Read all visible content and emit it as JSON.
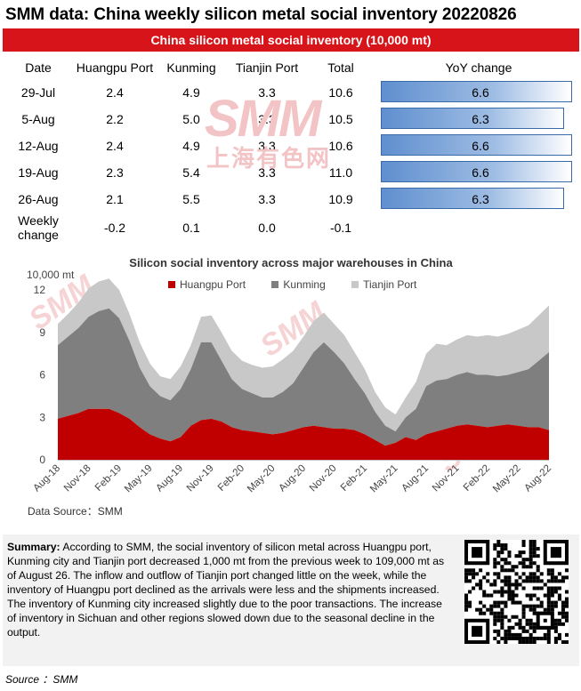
{
  "title": "SMM data: China weekly silicon metal social inventory 20220826",
  "table": {
    "header": "China silicon metal social inventory (10,000 mt)",
    "columns": [
      "Date",
      "Huangpu Port",
      "Kunming",
      "Tianjin Port",
      "Total",
      "YoY change"
    ],
    "rows": [
      {
        "date": "29-Jul",
        "huangpu": "2.4",
        "kunming": "4.9",
        "tianjin": "3.3",
        "total": "10.6",
        "yoy": "6.6",
        "yoy_value": 6.6
      },
      {
        "date": "5-Aug",
        "huangpu": "2.2",
        "kunming": "5.0",
        "tianjin": "3.3",
        "total": "10.5",
        "yoy": "6.3",
        "yoy_value": 6.3
      },
      {
        "date": "12-Aug",
        "huangpu": "2.4",
        "kunming": "4.9",
        "tianjin": "3.3",
        "total": "10.6",
        "yoy": "6.6",
        "yoy_value": 6.6
      },
      {
        "date": "19-Aug",
        "huangpu": "2.3",
        "kunming": "5.4",
        "tianjin": "3.3",
        "total": "11.0",
        "yoy": "6.6",
        "yoy_value": 6.6
      },
      {
        "date": "26-Aug",
        "huangpu": "2.1",
        "kunming": "5.5",
        "tianjin": "3.3",
        "total": "10.9",
        "yoy": "6.3",
        "yoy_value": 6.3
      }
    ],
    "weekly_change": {
      "label_line1": "Weekly",
      "label_line2": "change",
      "huangpu": "-0.2",
      "kunming": "0.1",
      "tianjin": "0.0",
      "total": "-0.1"
    }
  },
  "watermark": {
    "brand": "SMM",
    "chinese": "上海有色网"
  },
  "chart_data": {
    "type": "area",
    "stacked": true,
    "title": "Silicon social inventory across major warehouses in China",
    "unit_label": "10,000 mt",
    "ylim": [
      0,
      12
    ],
    "yticks": [
      "0",
      "3",
      "6",
      "9",
      "12"
    ],
    "xticks": [
      "Aug-18",
      "Nov-18",
      "Feb-19",
      "May-19",
      "Aug-19",
      "Nov-19",
      "Feb-20",
      "May-20",
      "Aug-20",
      "Nov-20",
      "Feb-21",
      "May-21",
      "Aug-21",
      "Nov-21",
      "Feb-22",
      "May-22",
      "Aug-22"
    ],
    "x_months": [
      0,
      3,
      6,
      9,
      12,
      15,
      18,
      21,
      24,
      27,
      30,
      33,
      36,
      39,
      42,
      45,
      48
    ],
    "grid": false,
    "legend_position": "top",
    "colors": {
      "Huangpu Port": "#c00000",
      "Kunming": "#7f7f7f",
      "Tianjin Port": "#c8c8c8"
    },
    "series": [
      {
        "name": "Huangpu Port",
        "points": [
          [
            0,
            2.9
          ],
          [
            1,
            3.1
          ],
          [
            2,
            3.3
          ],
          [
            3,
            3.6
          ],
          [
            4,
            3.6
          ],
          [
            5,
            3.6
          ],
          [
            6,
            3.3
          ],
          [
            7,
            2.9
          ],
          [
            8,
            2.3
          ],
          [
            9,
            1.8
          ],
          [
            10,
            1.5
          ],
          [
            11,
            1.3
          ],
          [
            12,
            1.6
          ],
          [
            13,
            2.4
          ],
          [
            14,
            2.8
          ],
          [
            15,
            2.9
          ],
          [
            16,
            2.7
          ],
          [
            17,
            2.3
          ],
          [
            18,
            2.1
          ],
          [
            19,
            2.0
          ],
          [
            20,
            1.9
          ],
          [
            21,
            1.8
          ],
          [
            22,
            1.9
          ],
          [
            23,
            2.1
          ],
          [
            24,
            2.3
          ],
          [
            25,
            2.4
          ],
          [
            26,
            2.3
          ],
          [
            27,
            2.2
          ],
          [
            28,
            2.2
          ],
          [
            29,
            2.1
          ],
          [
            30,
            1.8
          ],
          [
            31,
            1.4
          ],
          [
            32,
            1.0
          ],
          [
            33,
            1.2
          ],
          [
            34,
            1.6
          ],
          [
            35,
            1.4
          ],
          [
            36,
            1.8
          ],
          [
            37,
            2.0
          ],
          [
            38,
            2.2
          ],
          [
            39,
            2.4
          ],
          [
            40,
            2.5
          ],
          [
            41,
            2.4
          ],
          [
            42,
            2.3
          ],
          [
            43,
            2.4
          ],
          [
            44,
            2.5
          ],
          [
            45,
            2.4
          ],
          [
            46,
            2.3
          ],
          [
            47,
            2.3
          ],
          [
            48,
            2.1
          ]
        ]
      },
      {
        "name": "Kunming",
        "points": [
          [
            0,
            5.2
          ],
          [
            1,
            5.6
          ],
          [
            2,
            6.0
          ],
          [
            3,
            6.5
          ],
          [
            4,
            6.9
          ],
          [
            5,
            7.1
          ],
          [
            6,
            6.7
          ],
          [
            7,
            5.5
          ],
          [
            8,
            4.2
          ],
          [
            9,
            3.4
          ],
          [
            10,
            3.0
          ],
          [
            11,
            2.9
          ],
          [
            12,
            3.4
          ],
          [
            13,
            4.0
          ],
          [
            14,
            5.5
          ],
          [
            15,
            5.4
          ],
          [
            16,
            4.3
          ],
          [
            17,
            3.4
          ],
          [
            18,
            2.9
          ],
          [
            19,
            2.7
          ],
          [
            20,
            2.5
          ],
          [
            21,
            2.6
          ],
          [
            22,
            2.9
          ],
          [
            23,
            3.3
          ],
          [
            24,
            4.2
          ],
          [
            25,
            5.2
          ],
          [
            26,
            6.0
          ],
          [
            27,
            5.4
          ],
          [
            28,
            4.6
          ],
          [
            29,
            3.6
          ],
          [
            30,
            2.9
          ],
          [
            31,
            2.0
          ],
          [
            32,
            1.4
          ],
          [
            33,
            0.8
          ],
          [
            34,
            1.4
          ],
          [
            35,
            2.2
          ],
          [
            36,
            3.4
          ],
          [
            37,
            3.6
          ],
          [
            38,
            3.5
          ],
          [
            39,
            3.6
          ],
          [
            40,
            3.7
          ],
          [
            41,
            3.6
          ],
          [
            42,
            3.7
          ],
          [
            43,
            3.5
          ],
          [
            44,
            3.5
          ],
          [
            45,
            3.8
          ],
          [
            46,
            4.1
          ],
          [
            47,
            4.7
          ],
          [
            48,
            5.5
          ]
        ]
      },
      {
        "name": "Tianjin Port",
        "points": [
          [
            0,
            1.5
          ],
          [
            1,
            1.6
          ],
          [
            2,
            1.8
          ],
          [
            3,
            2.0
          ],
          [
            4,
            2.1
          ],
          [
            5,
            2.1
          ],
          [
            6,
            2.0
          ],
          [
            7,
            1.9
          ],
          [
            8,
            1.8
          ],
          [
            9,
            1.6
          ],
          [
            10,
            1.4
          ],
          [
            11,
            1.5
          ],
          [
            12,
            1.6
          ],
          [
            13,
            1.7
          ],
          [
            14,
            1.8
          ],
          [
            15,
            1.9
          ],
          [
            16,
            2.0
          ],
          [
            17,
            2.0
          ],
          [
            18,
            2.0
          ],
          [
            19,
            2.0
          ],
          [
            20,
            2.1
          ],
          [
            21,
            2.2
          ],
          [
            22,
            2.3
          ],
          [
            23,
            2.3
          ],
          [
            24,
            2.2
          ],
          [
            25,
            2.2
          ],
          [
            26,
            2.1
          ],
          [
            27,
            2.0
          ],
          [
            28,
            2.0
          ],
          [
            29,
            1.9
          ],
          [
            30,
            1.7
          ],
          [
            31,
            1.4
          ],
          [
            32,
            1.3
          ],
          [
            33,
            1.2
          ],
          [
            34,
            1.4
          ],
          [
            35,
            1.9
          ],
          [
            36,
            2.3
          ],
          [
            37,
            2.6
          ],
          [
            38,
            2.4
          ],
          [
            39,
            2.5
          ],
          [
            40,
            2.6
          ],
          [
            41,
            2.7
          ],
          [
            42,
            2.8
          ],
          [
            43,
            2.8
          ],
          [
            44,
            2.9
          ],
          [
            45,
            3.0
          ],
          [
            46,
            3.1
          ],
          [
            47,
            3.2
          ],
          [
            48,
            3.3
          ]
        ]
      }
    ],
    "source": "Data Source：SMM"
  },
  "summary": {
    "label": "Summary:",
    "text": "According to SMM, the social inventory of silicon metal across Huangpu port, Kunming city and Tianjin port decreased 1,000 mt from the previous week to 109,000 mt as of August 26. The inflow and outflow of Tianjin port changed little on the week, while the inventory of Huangpu port declined as the arrivals were less and the shipments increased. The inventory of Kunming city increased slightly due to the poor transactions. The increase of inventory in Sichuan and other regions slowed down due to the seasonal decline in the output."
  },
  "footer": "Source ：SMM"
}
